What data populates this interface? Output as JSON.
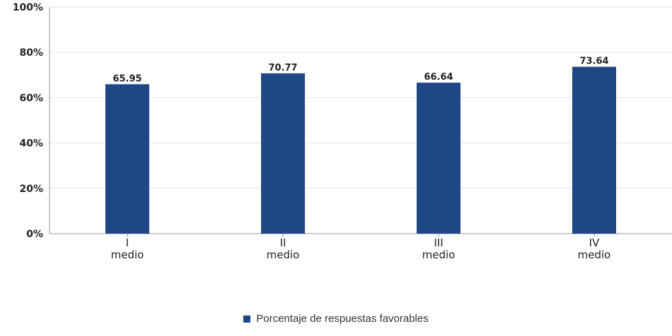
{
  "chart_data": {
    "type": "bar",
    "categories": [
      "I medio",
      "II medio",
      "III medio",
      "IV medio"
    ],
    "category_lines": [
      [
        "I",
        "medio"
      ],
      [
        "II",
        "medio"
      ],
      [
        "III",
        "medio"
      ],
      [
        "IV",
        "medio"
      ]
    ],
    "series": [
      {
        "name": "Porcentaje de respuestas favorables",
        "values": [
          65.95,
          70.77,
          66.64,
          73.64
        ],
        "data_labels": [
          "65.95",
          "70.77",
          "66.64",
          "73.64"
        ],
        "color": "#1f4786"
      }
    ],
    "title": "",
    "xlabel": "",
    "ylabel": "",
    "ylim": [
      0,
      100
    ],
    "yticks": [
      0,
      20,
      40,
      60,
      80,
      100
    ],
    "ytick_labels": [
      "0%",
      "20%",
      "40%",
      "60%",
      "80%",
      "100%"
    ],
    "grid": true,
    "legend_position": "bottom-center"
  }
}
